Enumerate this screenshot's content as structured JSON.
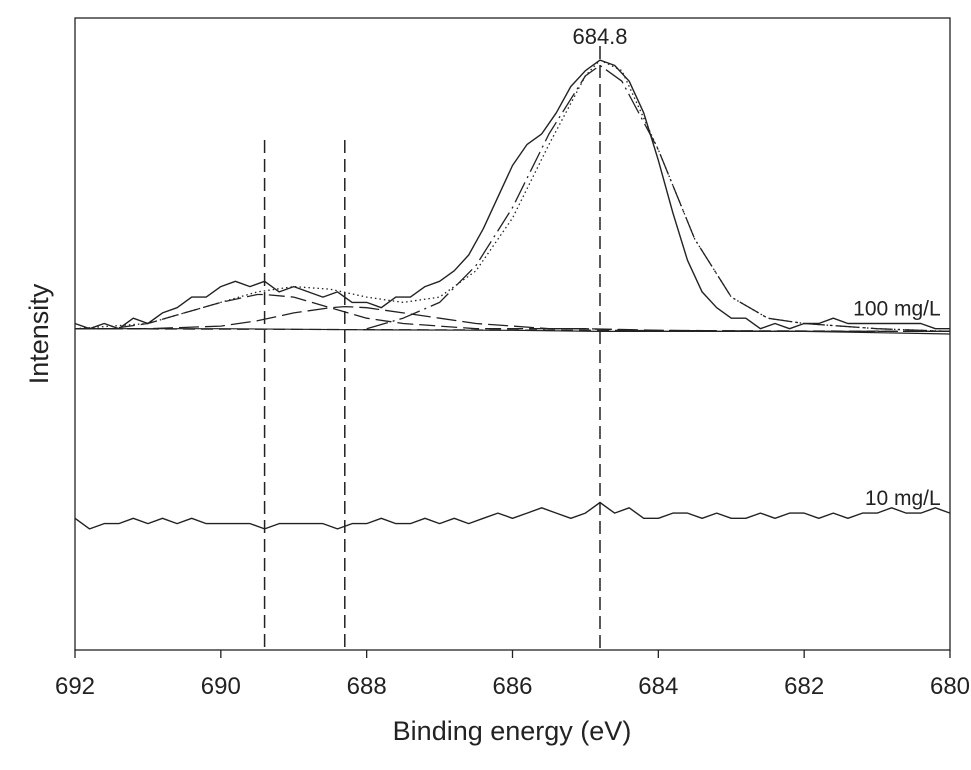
{
  "chart_data": {
    "type": "line",
    "title": "",
    "xlabel": "Binding energy (eV)",
    "ylabel": "Intensity",
    "xlim": [
      692,
      680
    ],
    "x_reversed": true,
    "ylim": [
      -0.2,
      1.0
    ],
    "x_ticks": [
      692,
      690,
      688,
      686,
      684,
      682,
      680
    ],
    "x_tick_labels": [
      "692",
      "690",
      "688",
      "686",
      "684",
      "682",
      "680"
    ],
    "y_ticks_shown": false,
    "grid": false,
    "reference_lines": [
      {
        "x": 684.8,
        "label": "684.8"
      },
      {
        "x": 689.4,
        "label": ""
      },
      {
        "x": 688.3,
        "label": ""
      }
    ],
    "annotations": [
      {
        "text": "100 mg/L",
        "x": 680.1,
        "y": 0.435
      },
      {
        "text": "10 mg/L",
        "x": 680.1,
        "y": 0.075
      }
    ],
    "series": [
      {
        "role": "measured spectrum",
        "x": [
          692.0,
          691.8,
          691.6,
          691.4,
          691.2,
          691.0,
          690.8,
          690.6,
          690.4,
          690.2,
          690.0,
          689.8,
          689.6,
          689.4,
          689.2,
          689.0,
          688.8,
          688.6,
          688.4,
          688.2,
          688.0,
          687.8,
          687.6,
          687.4,
          687.2,
          687.0,
          686.8,
          686.6,
          686.4,
          686.2,
          686.0,
          685.8,
          685.6,
          685.4,
          685.2,
          685.0,
          684.8,
          684.6,
          684.4,
          684.2,
          684.0,
          683.8,
          683.6,
          683.4,
          683.2,
          683.0,
          682.8,
          682.6,
          682.4,
          682.2,
          682.0,
          681.8,
          681.6,
          681.4,
          681.2,
          681.0,
          680.8,
          680.6,
          680.4,
          680.2,
          680.0
        ],
        "values": [
          0.42,
          0.41,
          0.42,
          0.41,
          0.43,
          0.42,
          0.44,
          0.45,
          0.47,
          0.47,
          0.49,
          0.5,
          0.49,
          0.5,
          0.48,
          0.49,
          0.48,
          0.47,
          0.48,
          0.46,
          0.46,
          0.45,
          0.47,
          0.47,
          0.49,
          0.5,
          0.52,
          0.55,
          0.6,
          0.66,
          0.72,
          0.76,
          0.78,
          0.82,
          0.87,
          0.9,
          0.92,
          0.91,
          0.88,
          0.82,
          0.73,
          0.63,
          0.54,
          0.48,
          0.45,
          0.43,
          0.43,
          0.41,
          0.42,
          0.41,
          0.42,
          0.42,
          0.43,
          0.42,
          0.42,
          0.42,
          0.42,
          0.42,
          0.42,
          0.41,
          0.41
        ]
      },
      {
        "role": "fitted envelope",
        "x": [
          692.0,
          691.0,
          690.5,
          690.0,
          689.5,
          689.0,
          688.5,
          688.0,
          687.5,
          687.0,
          686.5,
          686.0,
          685.5,
          685.0,
          684.8,
          684.5,
          684.0,
          683.5,
          683.0,
          682.5,
          682.0,
          681.0,
          680.0
        ],
        "values": [
          0.41,
          0.42,
          0.44,
          0.46,
          0.48,
          0.49,
          0.485,
          0.47,
          0.46,
          0.47,
          0.52,
          0.62,
          0.76,
          0.89,
          0.92,
          0.9,
          0.75,
          0.58,
          0.47,
          0.43,
          0.42,
          0.41,
          0.405
        ]
      },
      {
        "role": "component 684.8",
        "x": [
          688.0,
          687.5,
          687.0,
          686.5,
          686.0,
          685.5,
          685.0,
          684.8,
          684.5,
          684.0,
          683.5,
          683.0,
          682.5,
          682.0,
          681.0,
          680.0
        ],
        "values": [
          0.41,
          0.43,
          0.46,
          0.53,
          0.64,
          0.78,
          0.89,
          0.91,
          0.88,
          0.75,
          0.58,
          0.47,
          0.43,
          0.42,
          0.41,
          0.405
        ]
      },
      {
        "role": "component 689.4",
        "x": [
          692.0,
          691.5,
          691.0,
          690.5,
          690.0,
          689.5,
          689.4,
          689.0,
          688.5,
          688.0,
          687.5,
          687.0,
          686.5,
          686.0,
          685.0,
          684.0,
          682.0,
          680.0
        ],
        "values": [
          0.41,
          0.41,
          0.42,
          0.44,
          0.46,
          0.475,
          0.475,
          0.47,
          0.45,
          0.43,
          0.42,
          0.415,
          0.41,
          0.41,
          0.41,
          0.405,
          0.405,
          0.405
        ]
      },
      {
        "role": "component 688.3",
        "x": [
          692.0,
          691.0,
          690.0,
          689.5,
          689.0,
          688.5,
          688.3,
          688.0,
          687.5,
          687.0,
          686.5,
          686.0,
          685.5,
          685.0,
          684.0,
          682.0,
          680.0
        ],
        "values": [
          0.41,
          0.41,
          0.415,
          0.425,
          0.44,
          0.45,
          0.452,
          0.45,
          0.44,
          0.43,
          0.42,
          0.415,
          0.41,
          0.41,
          0.407,
          0.405,
          0.405
        ]
      },
      {
        "role": "baseline",
        "x": [
          692.0,
          690.0,
          688.0,
          686.0,
          684.8,
          684.0,
          682.0,
          680.0
        ],
        "values": [
          0.41,
          0.41,
          0.408,
          0.407,
          0.405,
          0.405,
          0.405,
          0.4
        ]
      },
      {
        "role": "10 mg/L spectrum",
        "x": [
          692.0,
          691.8,
          691.6,
          691.4,
          691.2,
          691.0,
          690.8,
          690.6,
          690.4,
          690.2,
          690.0,
          689.8,
          689.6,
          689.4,
          689.2,
          689.0,
          688.8,
          688.6,
          688.4,
          688.2,
          688.0,
          687.8,
          687.6,
          687.4,
          687.2,
          687.0,
          686.8,
          686.6,
          686.4,
          686.2,
          686.0,
          685.8,
          685.6,
          685.4,
          685.2,
          685.0,
          684.8,
          684.6,
          684.4,
          684.2,
          684.0,
          683.8,
          683.6,
          683.4,
          683.2,
          683.0,
          682.8,
          682.6,
          682.4,
          682.2,
          682.0,
          681.8,
          681.6,
          681.4,
          681.2,
          681.0,
          680.8,
          680.6,
          680.4,
          680.2,
          680.0
        ],
        "values": [
          0.05,
          0.03,
          0.04,
          0.04,
          0.05,
          0.04,
          0.05,
          0.04,
          0.05,
          0.04,
          0.04,
          0.04,
          0.04,
          0.03,
          0.04,
          0.04,
          0.04,
          0.04,
          0.03,
          0.04,
          0.04,
          0.05,
          0.04,
          0.04,
          0.05,
          0.04,
          0.05,
          0.04,
          0.05,
          0.06,
          0.05,
          0.06,
          0.07,
          0.06,
          0.05,
          0.06,
          0.08,
          0.06,
          0.07,
          0.05,
          0.05,
          0.06,
          0.06,
          0.05,
          0.06,
          0.05,
          0.05,
          0.06,
          0.05,
          0.06,
          0.06,
          0.05,
          0.06,
          0.05,
          0.06,
          0.06,
          0.07,
          0.06,
          0.06,
          0.07,
          0.06
        ]
      }
    ]
  }
}
